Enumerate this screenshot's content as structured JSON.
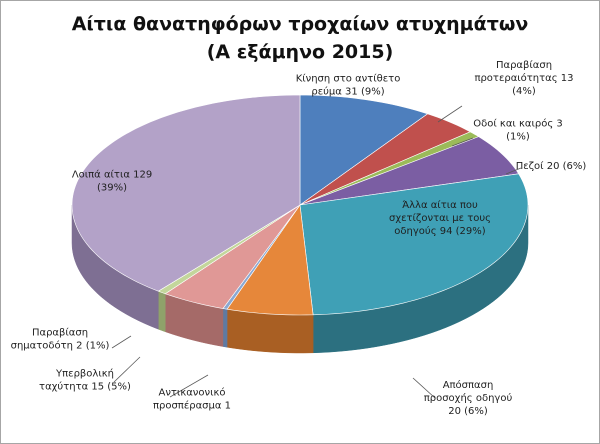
{
  "chart_data": {
    "type": "pie",
    "title_line1": "Αίτια θανατηφόρων τροχαίων ατυχημάτων",
    "title_line2": "(Α εξάμηνο 2015)",
    "slices": [
      {
        "name": "Κίνηση στο αντίθετο ρεύμα",
        "value": 31,
        "percent": "9%",
        "color": "#4e7fbd",
        "side": "#36598a",
        "label_lines": [
          "Κίνηση στο αντίθετο",
          "ρεύμα  31 (9%)"
        ]
      },
      {
        "name": "Παραβίαση προτεραιότητας",
        "value": 13,
        "percent": "4%",
        "color": "#c0504d",
        "side": "#8c3836",
        "label_lines": [
          "Παραβίαση",
          "προτεραιότητας  13",
          "(4%)"
        ]
      },
      {
        "name": "Οδοί και καιρός",
        "value": 3,
        "percent": "1%",
        "color": "#9bbb59",
        "side": "#6f8a3c",
        "label_lines": [
          "Οδοί και καιρός 3",
          "(1%)"
        ]
      },
      {
        "name": "Πεζοί",
        "value": 20,
        "percent": "6%",
        "color": "#7b5ea3",
        "side": "#574278",
        "label_lines": [
          "Πεζοί 20 (6%)"
        ]
      },
      {
        "name": "Άλλα αίτια που σχετίζονται με τους οδηγούς",
        "value": 94,
        "percent": "29%",
        "color": "#3fa0b6",
        "side": "#2c7080",
        "label_lines": [
          "Άλλα αίτια που",
          "σχετίζονται με τους",
          "οδηγούς 94 (29%)"
        ]
      },
      {
        "name": "Απόσπαση προσοχής οδηγού",
        "value": 20,
        "percent": "6%",
        "color": "#e6873a",
        "side": "#a95f23",
        "label_lines": [
          "Απόσπαση",
          "προσοχής οδηγού",
          "20 (6%)"
        ]
      },
      {
        "name": "Αντικανονικό προσπέρασμα",
        "value": 1,
        "percent": "",
        "color": "#8aa8d2",
        "side": "#5f7aa2",
        "label_lines": [
          "Αντικανονικό",
          "προσπέρασμα 1"
        ]
      },
      {
        "name": "Υπερβολική ταχύτητα",
        "value": 15,
        "percent": "5%",
        "color": "#e09896",
        "side": "#a56a68",
        "label_lines": [
          "Υπερβολική",
          "ταχύτητα  15 (5%)"
        ]
      },
      {
        "name": "Παραβίαση σηματοδότη",
        "value": 2,
        "percent": "1%",
        "color": "#c3d69b",
        "side": "#8fa26a",
        "label_lines": [
          "Παραβίαση",
          "σηματοδότη 2 (1%)"
        ]
      },
      {
        "name": "Λοιπά αίτια",
        "value": 129,
        "percent": "39%",
        "color": "#b3a2c8",
        "side": "#7e6f93",
        "label_lines": [
          "Λοιπά αίτια 129",
          "(39%)"
        ]
      }
    ],
    "legend": "none"
  }
}
